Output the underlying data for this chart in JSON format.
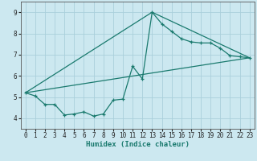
{
  "title": "",
  "xlabel": "Humidex (Indice chaleur)",
  "ylabel": "",
  "xlim": [
    -0.5,
    23.5
  ],
  "ylim": [
    3.5,
    9.5
  ],
  "xticks": [
    0,
    1,
    2,
    3,
    4,
    5,
    6,
    7,
    8,
    9,
    10,
    11,
    12,
    13,
    14,
    15,
    16,
    17,
    18,
    19,
    20,
    21,
    22,
    23
  ],
  "yticks": [
    4,
    5,
    6,
    7,
    8,
    9
  ],
  "bg_color": "#cce8f0",
  "line_color": "#1a7a6e",
  "grid_color": "#aacfdb",
  "points": [
    [
      0,
      5.2
    ],
    [
      1,
      5.05
    ],
    [
      2,
      4.65
    ],
    [
      3,
      4.65
    ],
    [
      4,
      4.15
    ],
    [
      5,
      4.2
    ],
    [
      6,
      4.3
    ],
    [
      7,
      4.1
    ],
    [
      8,
      4.2
    ],
    [
      9,
      4.85
    ],
    [
      10,
      4.9
    ],
    [
      11,
      6.45
    ],
    [
      12,
      5.85
    ],
    [
      13,
      9.0
    ],
    [
      14,
      8.45
    ],
    [
      15,
      8.1
    ],
    [
      16,
      7.75
    ],
    [
      17,
      7.6
    ],
    [
      18,
      7.55
    ],
    [
      19,
      7.55
    ],
    [
      20,
      7.3
    ],
    [
      21,
      6.95
    ],
    [
      22,
      6.9
    ],
    [
      23,
      6.85
    ]
  ],
  "line2_points": [
    [
      0,
      5.2
    ],
    [
      13,
      9.0
    ],
    [
      23,
      6.85
    ]
  ],
  "line3_points": [
    [
      0,
      5.2
    ],
    [
      23,
      6.85
    ]
  ]
}
